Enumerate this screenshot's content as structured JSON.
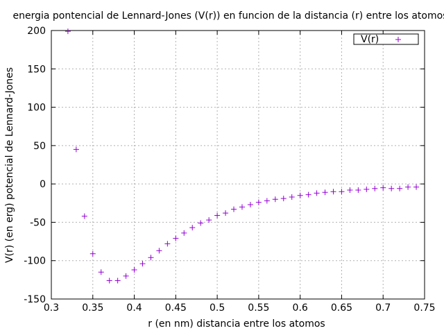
{
  "chart_data": {
    "type": "scatter",
    "title": "energia pontencial de Lennard-Jones (V(r)) en funcion de la distancia (r) entre los atomos",
    "xlabel": "r (en nm) distancia entre los atomos",
    "ylabel": "V(r) (en erg) potencial de Lennard-Jones",
    "xlim": [
      0.3,
      0.75
    ],
    "ylim": [
      -150,
      200
    ],
    "x_ticks": [
      "0.3",
      "0.35",
      "0.4",
      "0.45",
      "0.5",
      "0.55",
      "0.6",
      "0.65",
      "0.7",
      "0.75"
    ],
    "y_ticks": [
      "-150",
      "-100",
      "-50",
      "0",
      "50",
      "100",
      "150",
      "200"
    ],
    "grid": true,
    "legend_position": "top-right",
    "marker": "+",
    "series": [
      {
        "name": "V(r)",
        "color": "#9400d3",
        "x": [
          0.32,
          0.33,
          0.34,
          0.35,
          0.36,
          0.37,
          0.38,
          0.39,
          0.4,
          0.41,
          0.42,
          0.43,
          0.44,
          0.45,
          0.46,
          0.47,
          0.48,
          0.49,
          0.5,
          0.51,
          0.52,
          0.53,
          0.54,
          0.55,
          0.56,
          0.57,
          0.58,
          0.59,
          0.6,
          0.61,
          0.62,
          0.63,
          0.64,
          0.65,
          0.66,
          0.67,
          0.68,
          0.69,
          0.7,
          0.71,
          0.72,
          0.73,
          0.74
        ],
        "y": [
          199,
          45,
          -42,
          -91,
          -115,
          -126,
          -126,
          -120,
          -112,
          -104,
          -96,
          -87,
          -78,
          -71,
          -64,
          -57,
          -51,
          -47,
          -41,
          -38,
          -33,
          -30,
          -27,
          -24,
          -22,
          -20,
          -19,
          -17,
          -15,
          -14,
          -12,
          -11,
          -10,
          -10,
          -8,
          -8,
          -7,
          -6,
          -5,
          -6,
          -6,
          -4,
          -4
        ]
      }
    ]
  }
}
